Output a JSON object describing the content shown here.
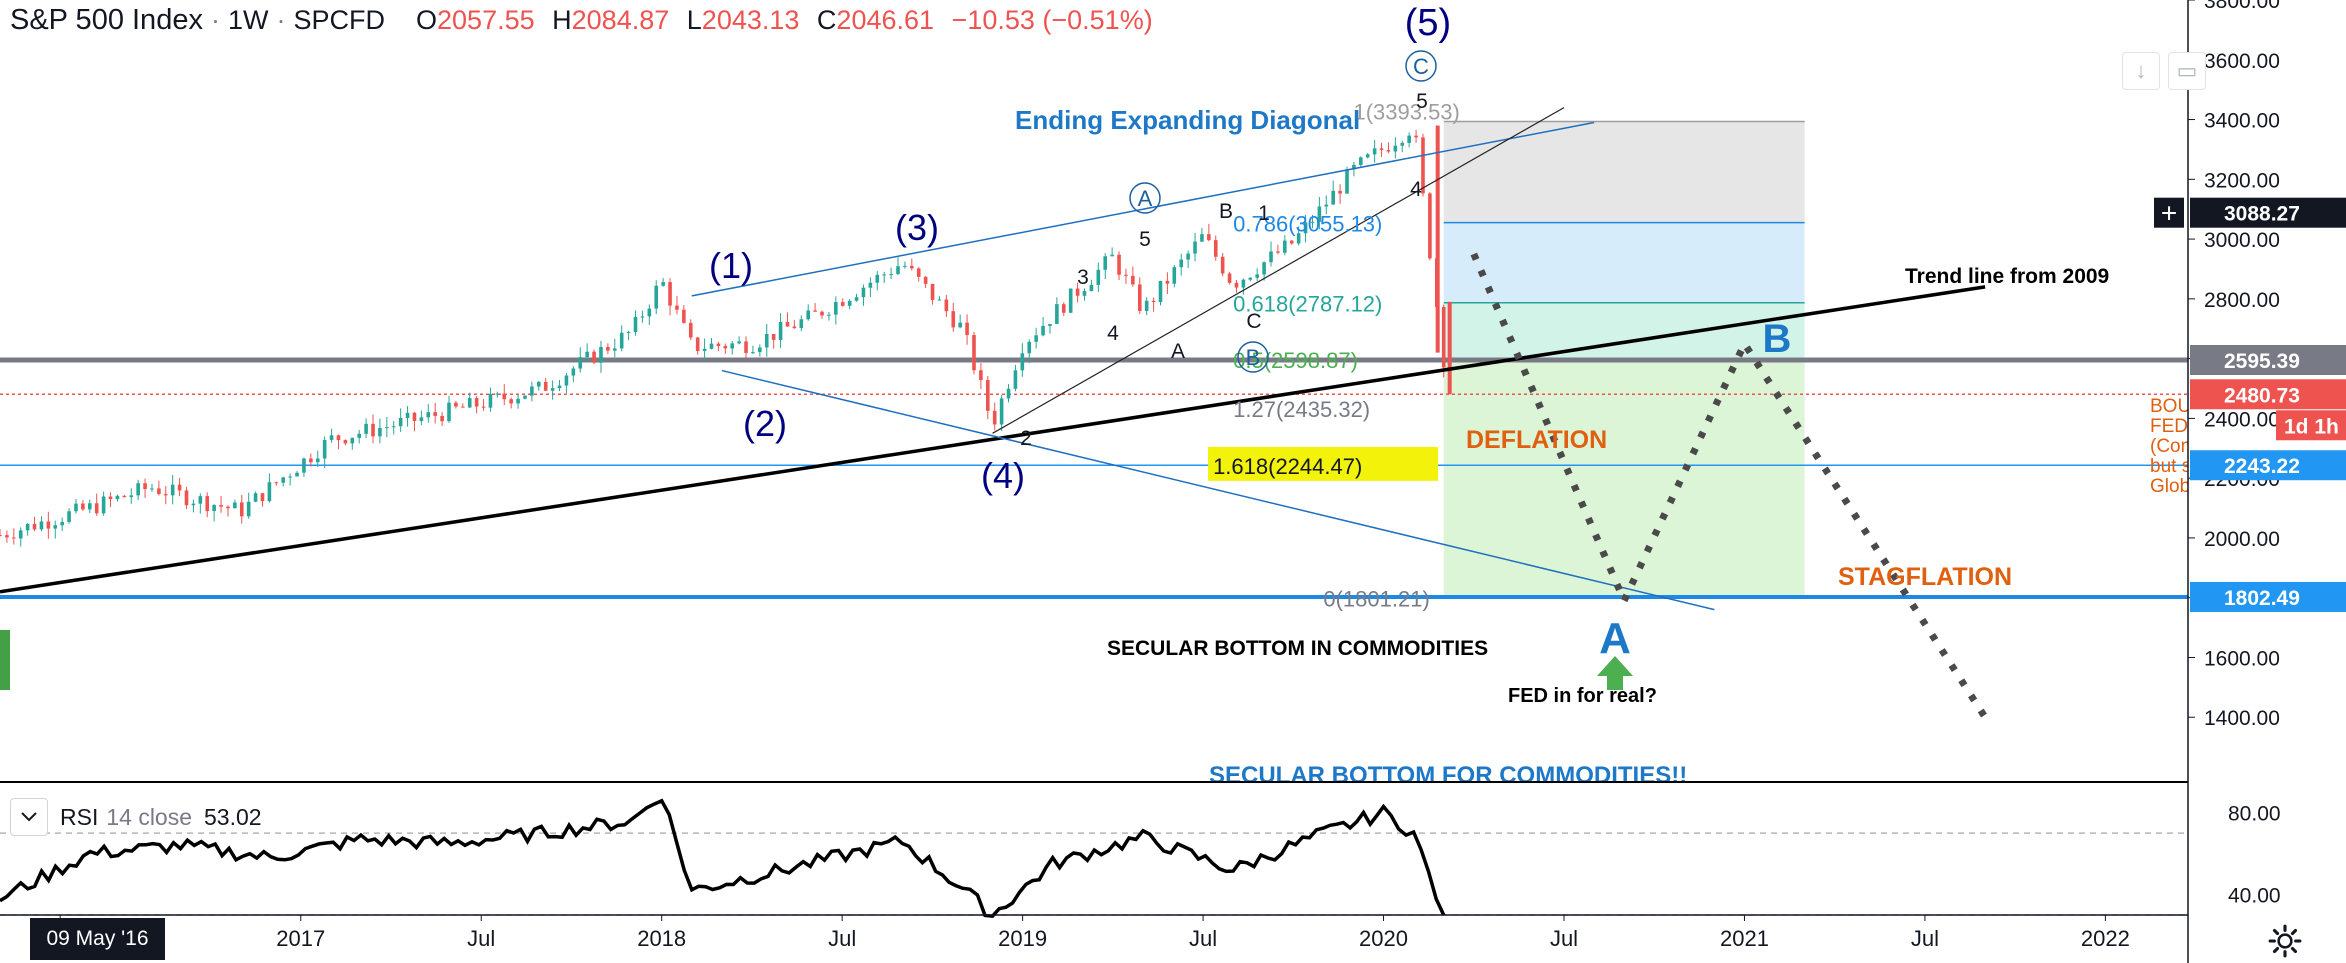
{
  "header": {
    "symbol": "S&P 500 Index",
    "interval": "1W",
    "exchange": "SPCFD",
    "open_label": "O",
    "open": "2057.55",
    "high_label": "H",
    "high": "2084.87",
    "low_label": "L",
    "low": "2043.13",
    "close_label": "C",
    "close": "2046.61",
    "change": "−10.53 (−0.51%)"
  },
  "rsi": {
    "name": "RSI",
    "params": "14 close",
    "value": "53.02"
  },
  "cursor_date": "09 May '16",
  "colors": {
    "up": "#26a69a",
    "down": "#ef5350",
    "blue": "#1e88e5",
    "wave": "#000080",
    "orange": "#e06010"
  },
  "chart_data": {
    "type": "candlestick",
    "title": "",
    "xlabel": "",
    "ylabel": "",
    "x_range": [
      "2016-03",
      "2022-09"
    ],
    "ylim": [
      1190,
      3800
    ],
    "x_tick_labels": [
      {
        "date": "2016-05",
        "label": ""
      },
      {
        "date": "2017-01",
        "label": "2017"
      },
      {
        "date": "2017-07",
        "label": "Jul"
      },
      {
        "date": "2018-01",
        "label": "2018"
      },
      {
        "date": "2018-07",
        "label": "Jul"
      },
      {
        "date": "2019-01",
        "label": "2019"
      },
      {
        "date": "2019-07",
        "label": "Jul"
      },
      {
        "date": "2020-01",
        "label": "2020"
      },
      {
        "date": "2020-07",
        "label": "Jul"
      },
      {
        "date": "2021-01",
        "label": "2021"
      },
      {
        "date": "2021-07",
        "label": "Jul"
      },
      {
        "date": "2022-01",
        "label": "2022"
      }
    ],
    "y_tick_labels": [
      "1400.00",
      "1600.00",
      "1800.00",
      "2000.00",
      "2200.00",
      "2400.00",
      "2600.00",
      "2800.00",
      "3000.00",
      "3200.00",
      "3400.00",
      "3600.00",
      "3800.00"
    ],
    "price_path": [
      [
        "2016-03",
        2010
      ],
      [
        "2016-06",
        2100
      ],
      [
        "2016-08",
        2170
      ],
      [
        "2016-11",
        2090
      ],
      [
        "2017-02",
        2330
      ],
      [
        "2017-05",
        2400
      ],
      [
        "2017-09",
        2500
      ],
      [
        "2017-12",
        2690
      ],
      [
        "2018-01",
        2860
      ],
      [
        "2018-02",
        2640
      ],
      [
        "2018-04",
        2650
      ],
      [
        "2018-06",
        2740
      ],
      [
        "2018-09",
        2920
      ],
      [
        "2018-11",
        2700
      ],
      [
        "2018-12",
        2380
      ],
      [
        "2019-01",
        2650
      ],
      [
        "2019-04",
        2940
      ],
      [
        "2019-05",
        2760
      ],
      [
        "2019-07",
        3010
      ],
      [
        "2019-08",
        2850
      ],
      [
        "2019-10",
        2990
      ],
      [
        "2019-12",
        3230
      ],
      [
        "2020-02",
        3380
      ],
      [
        "2020-03",
        2600
      ],
      [
        "2020-03-08",
        2711
      ]
    ],
    "last_close": 2480.73,
    "price_labels": [
      {
        "value": 3088.27,
        "label": "3088.27",
        "style": "crosshair"
      },
      {
        "value": 2595.39,
        "label": "2595.39",
        "style": "level"
      },
      {
        "value": 2480.73,
        "label": "2480.73",
        "style": "last"
      },
      {
        "value": 2243.22,
        "label": "2243.22",
        "style": "blue"
      },
      {
        "value": 1802.49,
        "label": "1802.49",
        "style": "blue"
      }
    ],
    "countdown": "1d 1h",
    "fib_levels": [
      {
        "ratio": "0",
        "value": 1801.21,
        "label": "0(1801.21)"
      },
      {
        "ratio": "0.5",
        "value": 2598.87,
        "label": "0.5(2598.87)"
      },
      {
        "ratio": "0.618",
        "value": 2787.12,
        "label": "0.618(2787.12)"
      },
      {
        "ratio": "0.786",
        "value": 3055.13,
        "label": "0.786(3055.13)"
      },
      {
        "ratio": "1",
        "value": 3393.53,
        "label": "1(3393.53)"
      },
      {
        "ratio": "1.27",
        "value": 2435.32,
        "label": "1.27(2435.32)"
      },
      {
        "ratio": "1.618",
        "value": 2244.47,
        "label": "1.618(2244.47)"
      }
    ],
    "wave_labels": [
      "(1)",
      "(2)",
      "(3)",
      "(4)",
      "(5)",
      "A",
      "B",
      "C",
      "1",
      "2",
      "3",
      "4",
      "5"
    ],
    "annotations": [
      "Ending Expanding Diagonal",
      "Trend line from 2009",
      "DEFLATION",
      "STAGFLATION",
      "SECULAR BOTTOM IN COMMODITIES",
      "FED in for real?",
      "SECULAR BOTTOM FOR COMMODITIES!!",
      "A",
      "B",
      "BOUNCE",
      "FED kil",
      "(Comm",
      "but spa",
      "Global"
    ],
    "rsi": {
      "ylim": [
        30,
        95
      ],
      "y_tick_labels": [
        "40.00",
        "80.00"
      ],
      "levels": [
        70,
        30
      ],
      "path": [
        [
          "2016-03",
          38
        ],
        [
          "2016-06",
          60
        ],
        [
          "2016-09",
          64
        ],
        [
          "2016-12",
          58
        ],
        [
          "2017-03",
          67
        ],
        [
          "2017-06",
          65
        ],
        [
          "2017-09",
          70
        ],
        [
          "2017-12",
          76
        ],
        [
          "2018-01",
          89
        ],
        [
          "2018-02",
          42
        ],
        [
          "2018-05",
          52
        ],
        [
          "2018-09",
          66
        ],
        [
          "2018-11",
          43
        ],
        [
          "2018-12",
          30
        ],
        [
          "2019-02",
          55
        ],
        [
          "2019-05",
          68
        ],
        [
          "2019-08",
          52
        ],
        [
          "2019-11",
          70
        ],
        [
          "2020-01",
          80
        ],
        [
          "2020-02",
          70
        ],
        [
          "2020-03",
          30
        ]
      ]
    }
  }
}
